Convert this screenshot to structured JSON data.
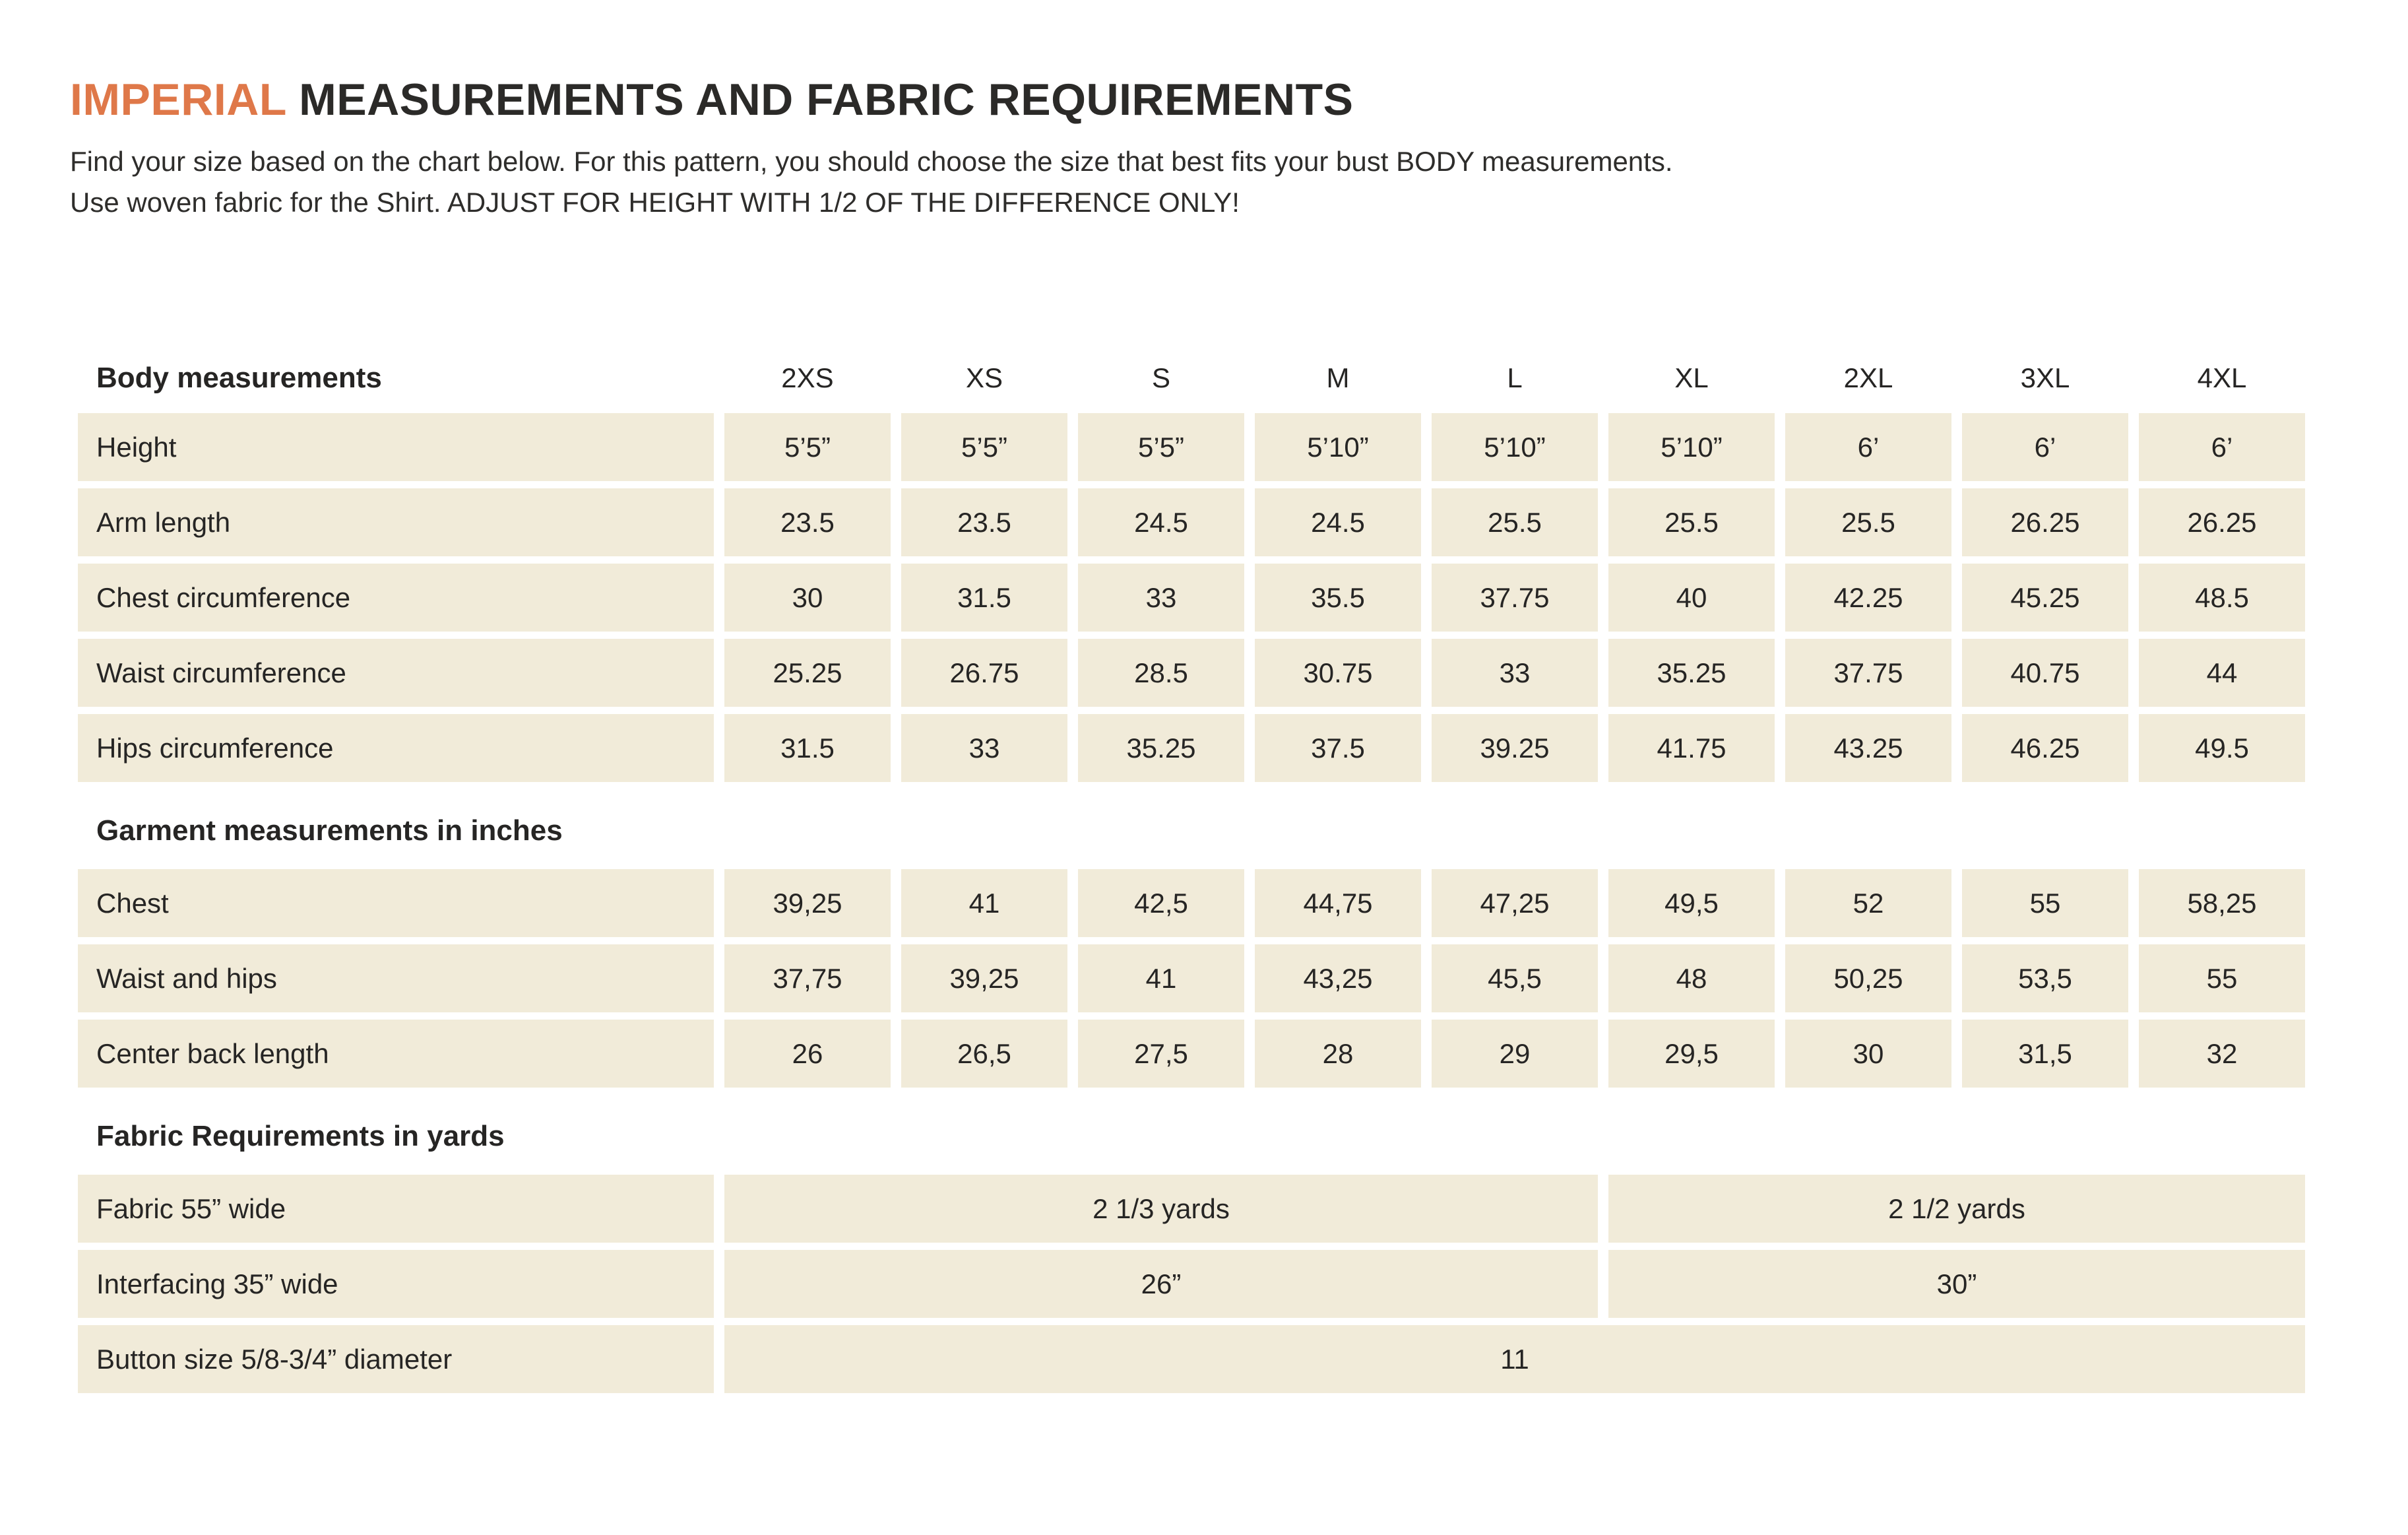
{
  "title": {
    "highlight": "IMPERIAL",
    "rest": " MEASUREMENTS AND FABRIC REQUIREMENTS"
  },
  "intro": {
    "line1": "Find your size based on the chart below. For this pattern, you should choose the size that best fits your bust BODY measurements.",
    "line2": "Use woven fabric for the Shirt. ADJUST FOR HEIGHT WITH 1/2 OF THE DIFFERENCE ONLY!"
  },
  "colors": {
    "accent": "#df7849",
    "cell": "#f1ebd9",
    "ink": "#262524",
    "title_ink": "#2b2a28"
  },
  "table": {
    "size_header": {
      "label": "Body measurements",
      "sizes": [
        "2XS",
        "XS",
        "S",
        "M",
        "L",
        "XL",
        "2XL",
        "3XL",
        "4XL"
      ]
    },
    "body_rows": [
      {
        "label": "Height",
        "values": [
          "5’5”",
          "5’5”",
          "5’5”",
          "5’10”",
          "5’10”",
          "5’10”",
          "6’",
          "6’",
          "6’"
        ]
      },
      {
        "label": "Arm length",
        "values": [
          "23.5",
          "23.5",
          "24.5",
          "24.5",
          "25.5",
          "25.5",
          "25.5",
          "26.25",
          "26.25"
        ]
      },
      {
        "label": "Chest circumference",
        "values": [
          "30",
          "31.5",
          "33",
          "35.5",
          "37.75",
          "40",
          "42.25",
          "45.25",
          "48.5"
        ]
      },
      {
        "label": "Waist circumference",
        "values": [
          "25.25",
          "26.75",
          "28.5",
          "30.75",
          "33",
          "35.25",
          "37.75",
          "40.75",
          "44"
        ]
      },
      {
        "label": "Hips circumference",
        "values": [
          "31.5",
          "33",
          "35.25",
          "37.5",
          "39.25",
          "41.75",
          "43.25",
          "46.25",
          "49.5"
        ]
      }
    ],
    "garment_header": "Garment measurements in inches",
    "garment_rows": [
      {
        "label": "Chest",
        "values": [
          "39,25",
          "41",
          "42,5",
          "44,75",
          "47,25",
          "49,5",
          "52",
          "55",
          "58,25"
        ]
      },
      {
        "label": "Waist and hips",
        "values": [
          "37,75",
          "39,25",
          "41",
          "43,25",
          "45,5",
          "48",
          "50,25",
          "53,5",
          "55"
        ]
      },
      {
        "label": "Center back length",
        "values": [
          "26",
          "26,5",
          "27,5",
          "28",
          "29",
          "29,5",
          "30",
          "31,5",
          "32"
        ]
      }
    ],
    "fabric_header": "Fabric Requirements in yards",
    "fabric_rows": [
      {
        "label": "Fabric 55” wide",
        "left": "2 1/3 yards",
        "right": "2 1/2 yards"
      },
      {
        "label": "Interfacing 35” wide",
        "left": "26”",
        "right": "30”"
      },
      {
        "label": "Button size 5/8-3/4” diameter",
        "full": "11"
      }
    ]
  }
}
